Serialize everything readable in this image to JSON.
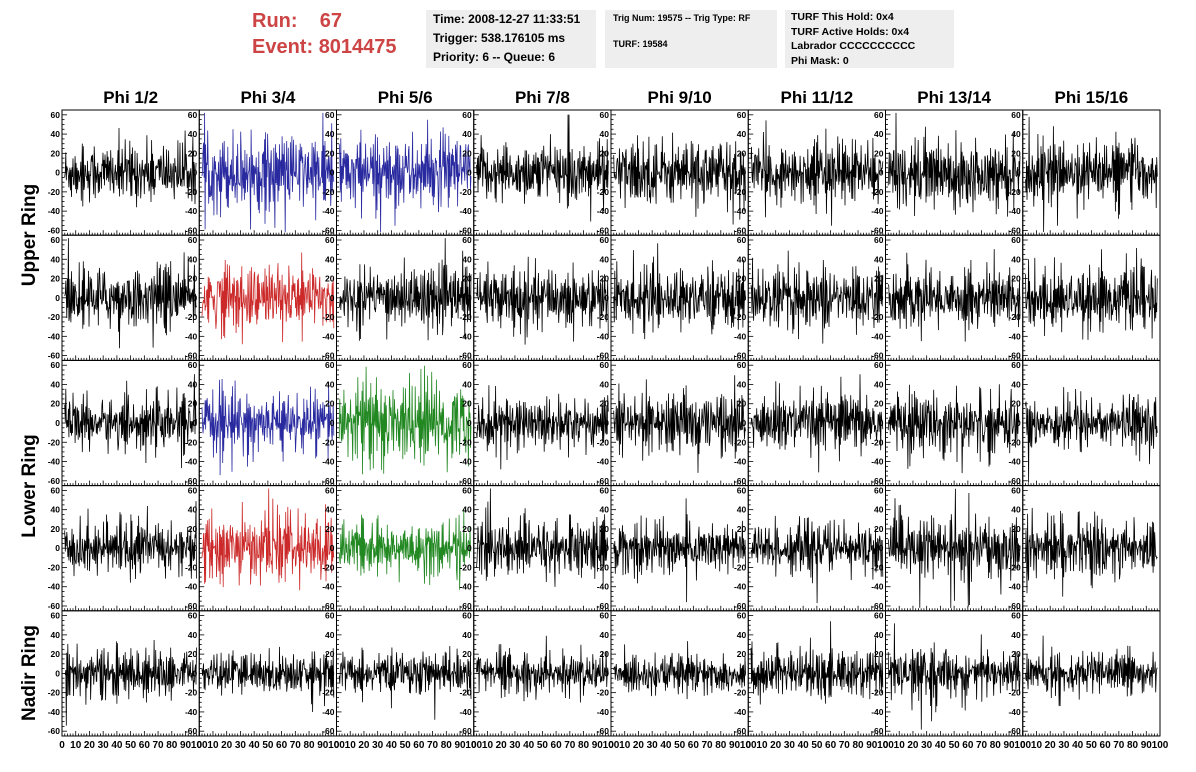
{
  "header": {
    "run_label": "Run:",
    "run_value": "67",
    "event_label": "Event:",
    "event_value": "8014475"
  },
  "info_box_1": {
    "time": "Time: 2008-12-27 11:33:51",
    "trigger": "Trigger: 538.176105 ms",
    "priority": "Priority: 6 -- Queue: 6"
  },
  "info_box_2": {
    "trig": "Trig Num: 19575 -- Trig Type: RF",
    "turf": "TURF: 19584"
  },
  "info_box_3": {
    "hold": "TURF This Hold: 0x4",
    "active": "TURF Active Holds: 0x4",
    "labrador": "Labrador CCCCCCCCCC",
    "phimask": "Phi Mask: 0"
  },
  "columns": [
    "Phi 1/2",
    "Phi 3/4",
    "Phi 5/6",
    "Phi 7/8",
    "Phi 9/10",
    "Phi 11/12",
    "Phi 13/14",
    "Phi 15/16"
  ],
  "rings": [
    "Upper Ring",
    "Lower Ring",
    "Nadir Ring"
  ],
  "chart_data": {
    "type": "line",
    "layout": "grid of 5 rows x 8 columns of waveform panels",
    "x_ticks": [
      0,
      10,
      20,
      30,
      40,
      50,
      60,
      70,
      80,
      90,
      100
    ],
    "xlim": [
      0,
      100
    ],
    "y_ticks": [
      -60,
      -40,
      -20,
      0,
      20,
      40,
      60
    ],
    "ylim": [
      -65,
      65
    ],
    "colors": {
      "default": "#000000",
      "blue": "#2a2aa0",
      "red": "#cc2a2a",
      "green": "#228822"
    },
    "panel_colors": [
      [
        "default",
        "blue",
        "blue",
        "default",
        "default",
        "default",
        "default",
        "default"
      ],
      [
        "default",
        "red",
        "default",
        "default",
        "default",
        "default",
        "default",
        "default"
      ],
      [
        "default",
        "blue",
        "green",
        "default",
        "default",
        "default",
        "default",
        "default"
      ],
      [
        "default",
        "red",
        "green",
        "default",
        "default",
        "default",
        "default",
        "default"
      ],
      [
        "default",
        "default",
        "default",
        "default",
        "default",
        "default",
        "default",
        "default"
      ]
    ],
    "panel_amplitude": [
      [
        18,
        22,
        22,
        18,
        20,
        18,
        20,
        18
      ],
      [
        18,
        20,
        18,
        18,
        18,
        18,
        18,
        18
      ],
      [
        16,
        18,
        24,
        16,
        18,
        18,
        18,
        16
      ],
      [
        16,
        20,
        16,
        18,
        16,
        16,
        18,
        18
      ],
      [
        14,
        12,
        12,
        12,
        12,
        14,
        14,
        12
      ]
    ],
    "samples_per_panel": 256
  }
}
